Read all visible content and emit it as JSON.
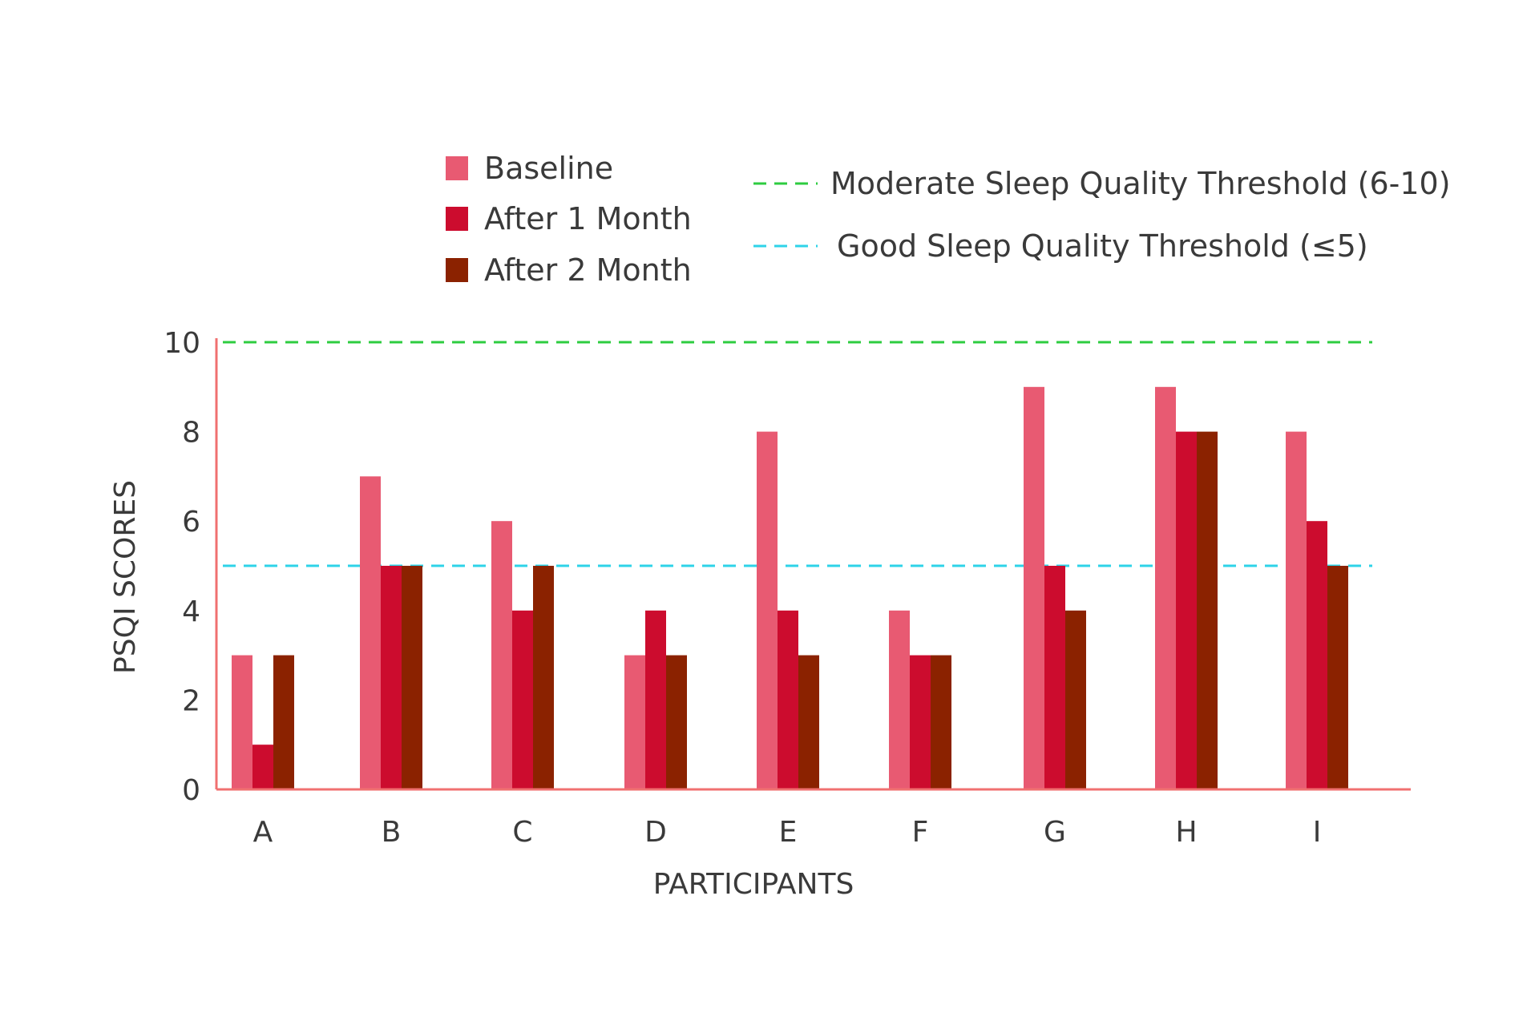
{
  "chart_data": {
    "type": "bar",
    "title": "",
    "xlabel": "PARTICIPANTS",
    "ylabel": "PSQI SCORES",
    "categories": [
      "A",
      "B",
      "C",
      "D",
      "E",
      "F",
      "G",
      "H",
      "I"
    ],
    "series": [
      {
        "name": "Baseline",
        "color": "#E85A72",
        "values": [
          3,
          7,
          6,
          3,
          8,
          4,
          9,
          9,
          8
        ]
      },
      {
        "name": "After 1 Month",
        "color": "#CC0C2E",
        "values": [
          1,
          5,
          4,
          4,
          4,
          3,
          5,
          8,
          6
        ]
      },
      {
        "name": "After 2 Month",
        "color": "#8B2200",
        "values": [
          3,
          5,
          5,
          3,
          3,
          3,
          4,
          8,
          5
        ]
      }
    ],
    "ylim": [
      0,
      10
    ],
    "yticks": [
      "0",
      "2",
      "4",
      "6",
      "8",
      "10"
    ],
    "thresholds": [
      {
        "name": "Moderate Sleep Quality Threshold (6-10)",
        "value": 10,
        "color": "#2ECC40",
        "style": "dashed"
      },
      {
        "name": "Good Sleep Quality Threshold (≤5)",
        "value": 5,
        "color": "#2ED3E8",
        "style": "dashed"
      }
    ],
    "axis_color": "#F07070",
    "grid": false,
    "legend_position": "top"
  }
}
